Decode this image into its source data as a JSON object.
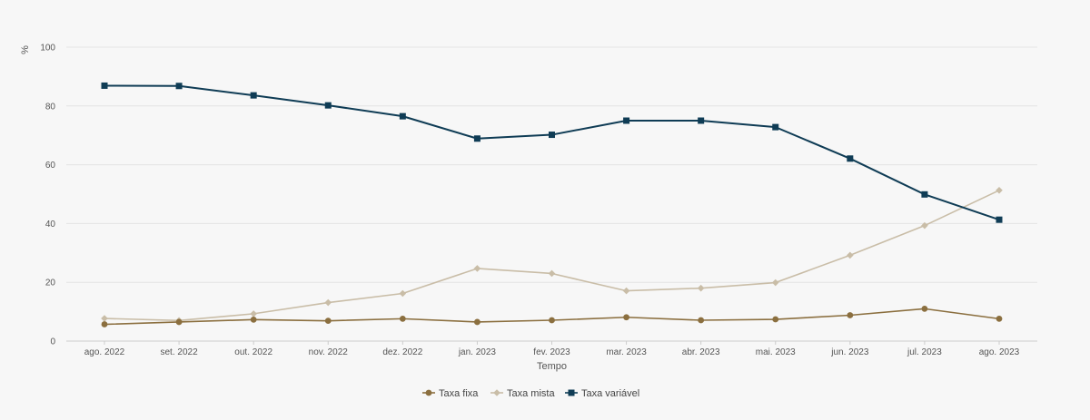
{
  "chart_data": {
    "type": "line",
    "title": "",
    "xlabel": "Tempo",
    "ylabel": "%",
    "ylim": [
      0,
      100
    ],
    "yticks": [
      0,
      20,
      40,
      60,
      80,
      100
    ],
    "grid": true,
    "legend_position": "bottom-center",
    "categories": [
      "ago. 2022",
      "set. 2022",
      "out. 2022",
      "nov. 2022",
      "dez. 2022",
      "jan. 2023",
      "fev. 2023",
      "mar. 2023",
      "abr. 2023",
      "mai. 2023",
      "jun. 2023",
      "jul. 2023",
      "ago. 2023"
    ],
    "series": [
      {
        "name": "Taxa fixa",
        "color": "#8b6f3f",
        "marker": "circle",
        "values": [
          5.7,
          6.5,
          7.3,
          6.9,
          7.6,
          6.5,
          7.1,
          8.1,
          7.1,
          7.4,
          8.8,
          11.0,
          7.6
        ]
      },
      {
        "name": "Taxa mista",
        "color": "#c9bda7",
        "marker": "diamond",
        "values": [
          7.7,
          7.0,
          9.3,
          13.1,
          16.2,
          24.7,
          23.0,
          17.1,
          18.0,
          19.9,
          29.2,
          39.3,
          51.3
        ]
      },
      {
        "name": "Taxa variável",
        "color": "#0f3c55",
        "marker": "square",
        "values": [
          86.9,
          86.8,
          83.6,
          80.2,
          76.5,
          68.9,
          70.2,
          75.0,
          75.0,
          72.8,
          62.1,
          49.9,
          41.3
        ]
      }
    ]
  }
}
